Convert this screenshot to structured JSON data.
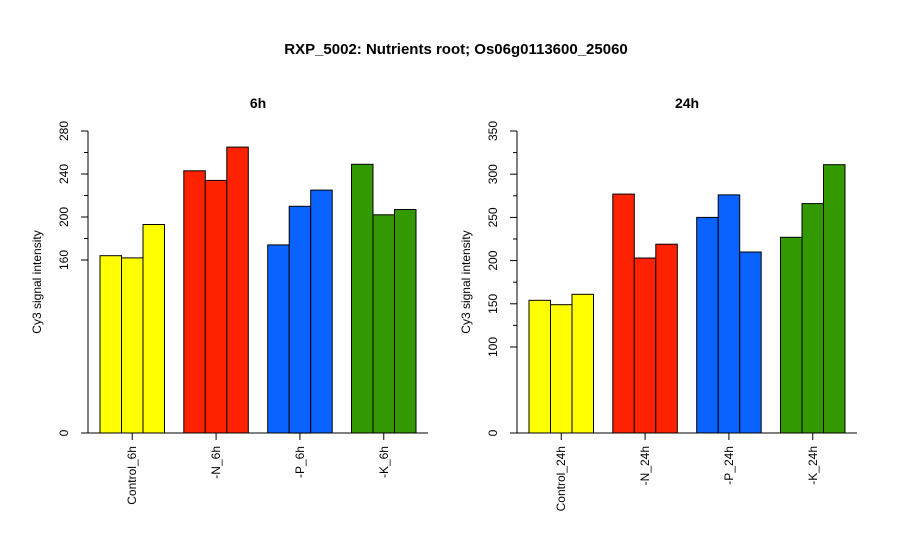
{
  "figure": {
    "title": "RXP_5002: Nutrients root; Os06g0113600_25060"
  },
  "chart_data": [
    {
      "type": "bar",
      "title": "6h",
      "xlabel": "",
      "ylabel": "Cy3 signal intensity",
      "ylim": [
        0,
        280
      ],
      "axis_break": [
        0,
        160
      ],
      "yticks": [
        0,
        160,
        200,
        240,
        280
      ],
      "categories": [
        "Control_6h",
        "-N_6h",
        "-P_6h",
        "-K_6h"
      ],
      "colors": [
        "#ffff00",
        "#ff2200",
        "#0b63ff",
        "#339900"
      ],
      "values": [
        [
          164,
          162,
          193
        ],
        [
          243,
          234,
          265
        ],
        [
          174,
          210,
          225
        ],
        [
          249,
          202,
          207
        ]
      ],
      "grid": false,
      "legend": "none"
    },
    {
      "type": "bar",
      "title": "24h",
      "xlabel": "",
      "ylabel": "Cy3 signal intensity",
      "ylim": [
        0,
        350
      ],
      "axis_break": [
        0,
        100
      ],
      "yticks": [
        0,
        100,
        150,
        200,
        250,
        300,
        350
      ],
      "categories": [
        "Control_24h",
        "-N_24h",
        "-P_24h",
        "-K_24h"
      ],
      "colors": [
        "#ffff00",
        "#ff2200",
        "#0b63ff",
        "#339900"
      ],
      "values": [
        [
          154,
          149,
          161
        ],
        [
          277,
          203,
          219
        ],
        [
          250,
          276,
          210
        ],
        [
          227,
          266,
          311
        ]
      ],
      "grid": false,
      "legend": "none"
    }
  ]
}
